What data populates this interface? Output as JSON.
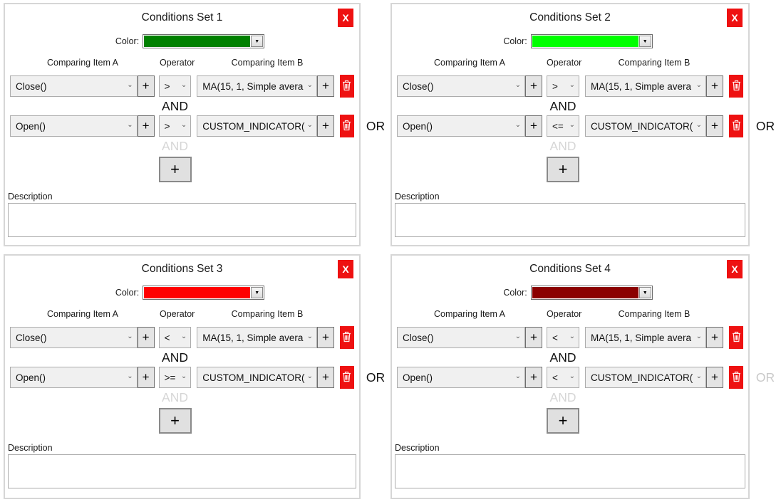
{
  "icons": {
    "combo_chevron": "⌄",
    "dropdown_arrow": "▼"
  },
  "or_separators": [
    {
      "label": "OR",
      "disabled": false
    },
    {
      "label": "OR",
      "disabled": false
    },
    {
      "label": "OR",
      "disabled": false
    },
    {
      "label": "OR",
      "disabled": true
    }
  ],
  "panels": [
    {
      "title": "Conditions Set 1",
      "close_label": "X",
      "color_label": "Color:",
      "color_value": "#008000",
      "column_headers": {
        "item_a": "Comparing Item A",
        "operator": "Operator",
        "item_b": "Comparing Item B"
      },
      "plus_label": "+",
      "rows": [
        {
          "item_a": "Close()",
          "operator": ">",
          "item_b": "MA(15, 1, Simple avera"
        },
        {
          "item_a": "Open()",
          "operator": ">",
          "item_b": "CUSTOM_INDICATOR("
        }
      ],
      "and_label": "AND",
      "and_next_label": "AND",
      "add_condition_label": "+",
      "description_label": "Description",
      "description_value": ""
    },
    {
      "title": "Conditions Set 2",
      "close_label": "X",
      "color_label": "Color:",
      "color_value": "#00ff00",
      "column_headers": {
        "item_a": "Comparing Item A",
        "operator": "Operator",
        "item_b": "Comparing Item B"
      },
      "plus_label": "+",
      "rows": [
        {
          "item_a": "Close()",
          "operator": ">",
          "item_b": "MA(15, 1, Simple avera"
        },
        {
          "item_a": "Open()",
          "operator": "<=",
          "item_b": "CUSTOM_INDICATOR("
        }
      ],
      "and_label": "AND",
      "and_next_label": "AND",
      "add_condition_label": "+",
      "description_label": "Description",
      "description_value": ""
    },
    {
      "title": "Conditions Set 3",
      "close_label": "X",
      "color_label": "Color:",
      "color_value": "#ff0000",
      "column_headers": {
        "item_a": "Comparing Item A",
        "operator": "Operator",
        "item_b": "Comparing Item B"
      },
      "plus_label": "+",
      "rows": [
        {
          "item_a": "Close()",
          "operator": "<",
          "item_b": "MA(15, 1, Simple avera"
        },
        {
          "item_a": "Open()",
          "operator": ">=",
          "item_b": "CUSTOM_INDICATOR("
        }
      ],
      "and_label": "AND",
      "and_next_label": "AND",
      "add_condition_label": "+",
      "description_label": "Description",
      "description_value": ""
    },
    {
      "title": "Conditions Set 4",
      "close_label": "X",
      "color_label": "Color:",
      "color_value": "#8b0000",
      "column_headers": {
        "item_a": "Comparing Item A",
        "operator": "Operator",
        "item_b": "Comparing Item B"
      },
      "plus_label": "+",
      "rows": [
        {
          "item_a": "Close()",
          "operator": "<",
          "item_b": "MA(15, 1, Simple avera"
        },
        {
          "item_a": "Open()",
          "operator": "<",
          "item_b": "CUSTOM_INDICATOR("
        }
      ],
      "and_label": "AND",
      "and_next_label": "AND",
      "add_condition_label": "+",
      "description_label": "Description",
      "description_value": ""
    }
  ]
}
